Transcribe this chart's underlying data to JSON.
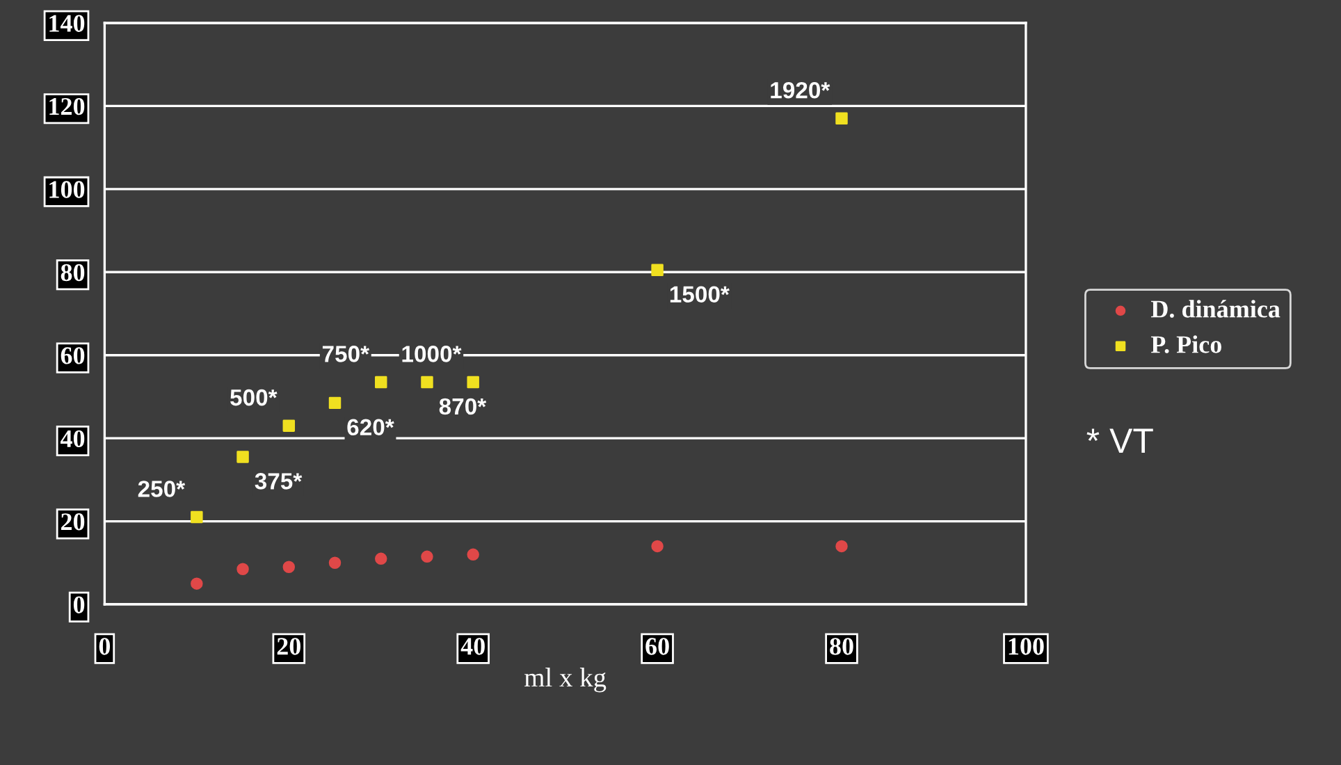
{
  "chart_data": {
    "type": "scatter",
    "xlabel": "ml x kg",
    "xlim": [
      0,
      100
    ],
    "xticks": [
      0,
      20,
      40,
      60,
      80,
      100
    ],
    "ylim": [
      0,
      140
    ],
    "yticks": [
      0,
      20,
      40,
      60,
      80,
      100,
      120,
      140
    ],
    "grid": "y",
    "legend": "right",
    "series": [
      {
        "name": "D. dinámica",
        "color": "#e04848",
        "marker": "circle",
        "x": [
          10,
          15,
          20,
          25,
          30,
          35,
          40,
          60,
          80
        ],
        "values": [
          5,
          8.5,
          9,
          10,
          11,
          11.5,
          12,
          14,
          14
        ]
      },
      {
        "name": "P. Pico",
        "color": "#f0e020",
        "marker": "square",
        "x": [
          10,
          15,
          20,
          25,
          30,
          35,
          40,
          60,
          80
        ],
        "values": [
          21,
          35.5,
          43,
          48.5,
          53.5,
          53.5,
          53.5,
          80.5,
          117
        ]
      }
    ],
    "annotations": [
      {
        "text": "250*",
        "x": 10,
        "y": 21
      },
      {
        "text": "375*",
        "x": 15,
        "y": 35.5
      },
      {
        "text": "500*",
        "x": 20,
        "y": 43
      },
      {
        "text": "620*",
        "x": 25,
        "y": 48.5
      },
      {
        "text": "750*",
        "x": 30,
        "y": 53.5
      },
      {
        "text": "870*",
        "x": 35,
        "y": 53.5
      },
      {
        "text": "1000*",
        "x": 40,
        "y": 53.5
      },
      {
        "text": "1500*",
        "x": 60,
        "y": 80.5
      },
      {
        "text": "1920*",
        "x": 80,
        "y": 117
      },
      "* VT"
    ]
  }
}
